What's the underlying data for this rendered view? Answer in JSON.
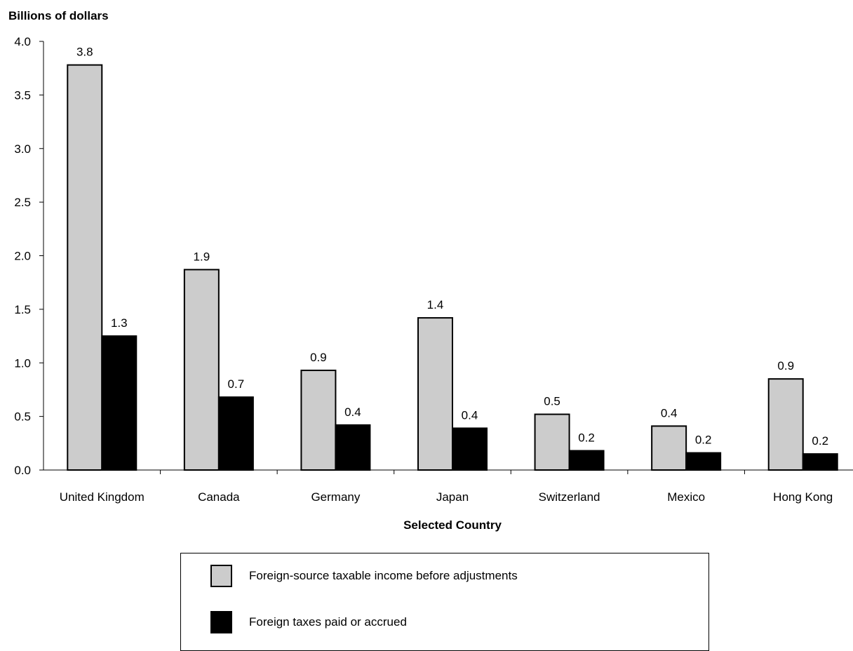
{
  "chart_data": {
    "type": "bar",
    "ylabel": "Billions of dollars",
    "xlabel": "Selected Country",
    "ylim": [
      0,
      4.0
    ],
    "yticks": [
      "0.0",
      "0.5",
      "1.0",
      "1.5",
      "2.0",
      "2.5",
      "3.0",
      "3.5",
      "4.0"
    ],
    "grid": false,
    "legend_position": "bottom-center",
    "categories": [
      "United Kingdom",
      "Canada",
      "Germany",
      "Japan",
      "Switzerland",
      "Mexico",
      "Hong Kong"
    ],
    "series": [
      {
        "name": "Foreign-source taxable income before adjustments",
        "color": "#cccccc",
        "values": [
          3.78,
          1.87,
          0.93,
          1.42,
          0.52,
          0.41,
          0.85
        ],
        "labels": [
          "3.8",
          "1.9",
          "0.9",
          "1.4",
          "0.5",
          "0.4",
          "0.9"
        ]
      },
      {
        "name": "Foreign taxes paid or accrued",
        "color": "#000000",
        "values": [
          1.25,
          0.68,
          0.42,
          0.39,
          0.18,
          0.16,
          0.15
        ],
        "labels": [
          "1.3",
          "0.7",
          "0.4",
          "0.4",
          "0.2",
          "0.2",
          "0.2"
        ]
      }
    ]
  }
}
